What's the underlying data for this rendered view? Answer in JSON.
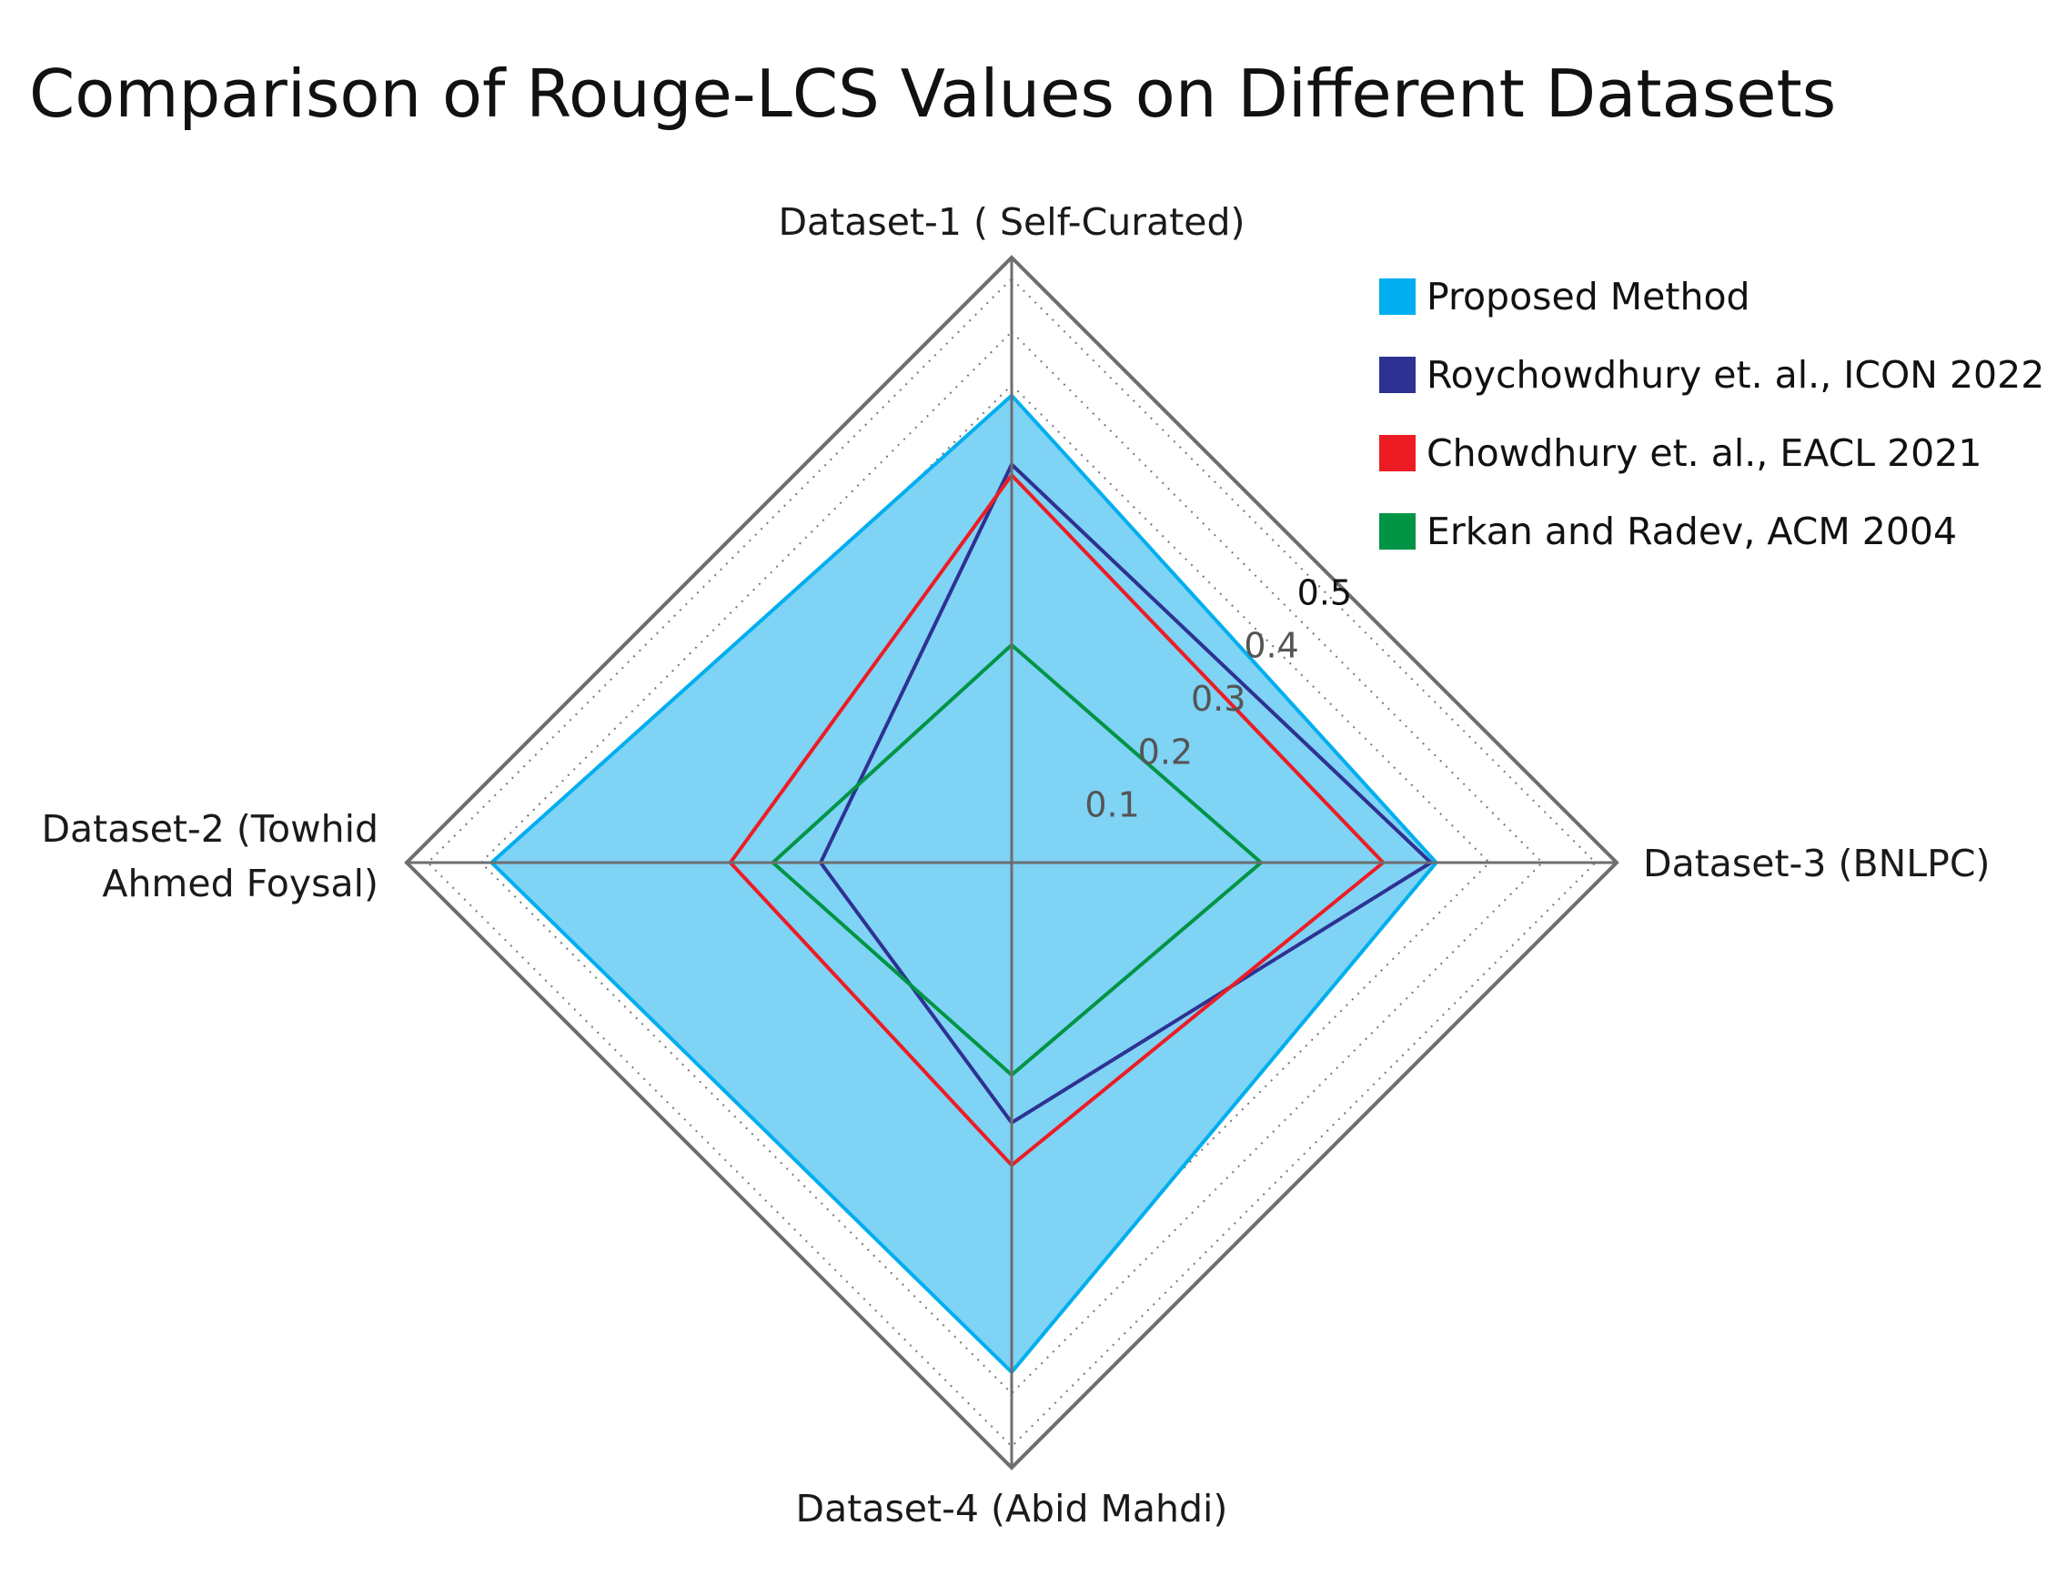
{
  "chart_data": {
    "type": "radar",
    "title": "Comparison of Rouge-LCS Values on Different Datasets",
    "axes": [
      {
        "label": [
          "Dataset-1 ( Self-Curated)"
        ]
      },
      {
        "label": [
          "Dataset-3 (BNLPC)"
        ]
      },
      {
        "label": [
          "Dataset-4 (Abid Mahdi)"
        ]
      },
      {
        "label": [
          "Dataset-2 (Towhid",
          "Ahmed Foysal)"
        ]
      }
    ],
    "rlim": [
      0,
      0.57
    ],
    "ticks": [
      0.1,
      0.2,
      0.3,
      0.4,
      0.5
    ],
    "tick_labels": [
      "0.1",
      "0.2",
      "0.3",
      "0.4",
      "0.5"
    ],
    "grid": "dotted",
    "legend_position": "top-right",
    "series": [
      {
        "name": "Proposed Method",
        "color": "#00AEEF",
        "fill": "#7FD3F5",
        "values": [
          0.44,
          0.4,
          0.48,
          0.49
        ]
      },
      {
        "name": "Roychowdhury et. al., ICON 2022",
        "color": "#2E3192",
        "fill": null,
        "values": [
          0.375,
          0.395,
          0.245,
          0.18
        ]
      },
      {
        "name": "Chowdhury et. al., EACL 2021",
        "color": "#ED1C24",
        "fill": null,
        "values": [
          0.365,
          0.35,
          0.285,
          0.265
        ]
      },
      {
        "name": "Erkan and Radev, ACM 2004",
        "color": "#009444",
        "fill": null,
        "values": [
          0.205,
          0.235,
          0.2,
          0.225
        ]
      }
    ]
  }
}
